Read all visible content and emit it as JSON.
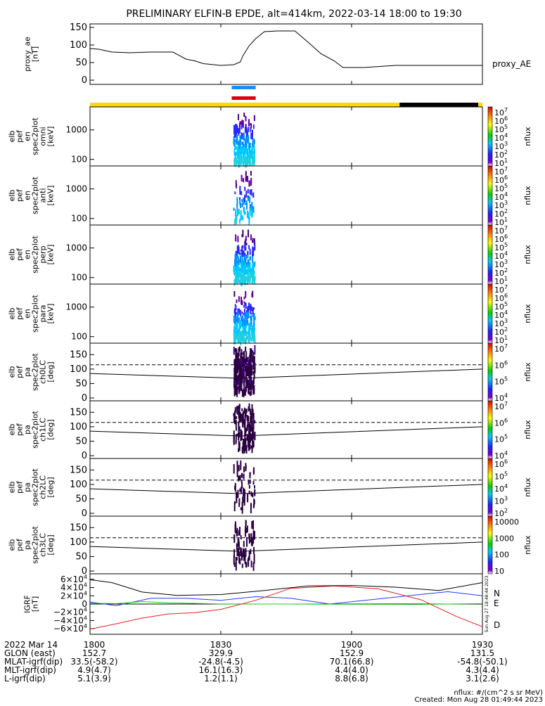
{
  "title": "PRELIMINARY ELFIN-B EPDE, alt=414km, 2022-03-14 18:00 to 19:30",
  "ae_panel": {
    "ylabel_lines": [
      "proxy_ae",
      "[nT]"
    ],
    "yticks": [
      "150",
      "100",
      "50",
      "0"
    ],
    "legend": "proxy_AE"
  },
  "spec_panels": [
    {
      "ylabel_lines": [
        "elb",
        "pef",
        "en",
        "spec2plot",
        "omni",
        "[keV]"
      ],
      "yticks": [
        "1000",
        "100"
      ],
      "cbar_ticks": [
        "10",
        "10",
        "10",
        "10",
        "10",
        "10",
        "10"
      ],
      "cbar_exps": [
        "7",
        "6",
        "5",
        "4",
        "3",
        "2",
        "1"
      ],
      "cbar_label": "nflux"
    },
    {
      "ylabel_lines": [
        "elb",
        "pef",
        "en",
        "spec2plot",
        "anti",
        "[keV]"
      ],
      "yticks": [
        "1000",
        "100"
      ],
      "cbar_ticks": [
        "10",
        "10",
        "10",
        "10",
        "10",
        "10",
        "10"
      ],
      "cbar_exps": [
        "7",
        "6",
        "5",
        "4",
        "3",
        "2",
        "1"
      ],
      "cbar_label": "nflux"
    },
    {
      "ylabel_lines": [
        "elb",
        "pef",
        "en",
        "spec2plot",
        "perp",
        "[keV]"
      ],
      "yticks": [
        "1000",
        "100"
      ],
      "cbar_ticks": [
        "10",
        "10",
        "10",
        "10",
        "10",
        "10",
        "10"
      ],
      "cbar_exps": [
        "7",
        "6",
        "5",
        "4",
        "3",
        "2",
        "1"
      ],
      "cbar_label": "nflux"
    },
    {
      "ylabel_lines": [
        "elb",
        "pef",
        "en",
        "spec2plot",
        "para",
        "[keV]"
      ],
      "yticks": [
        "1000",
        "100"
      ],
      "cbar_ticks": [
        "10",
        "10",
        "10",
        "10",
        "10",
        "10",
        "10"
      ],
      "cbar_exps": [
        "7",
        "6",
        "5",
        "4",
        "3",
        "2",
        "1"
      ],
      "cbar_label": "nflux"
    }
  ],
  "pa_panels": [
    {
      "ylabel_lines": [
        "elb",
        "pef",
        "pa",
        "spec2plot",
        "ch0LC",
        "[deg]"
      ],
      "yticks": [
        "150",
        "100",
        "50",
        "0"
      ],
      "cbar_ticks": [
        "10",
        "10",
        "10",
        "10"
      ],
      "cbar_exps": [
        "7",
        "6",
        "5",
        "4"
      ],
      "cbar_label": "nflux"
    },
    {
      "ylabel_lines": [
        "elb",
        "pef",
        "pa",
        "spec2plot",
        "ch1LC",
        "[deg]"
      ],
      "yticks": [
        "150",
        "100",
        "50",
        "0"
      ],
      "cbar_ticks": [
        "10",
        "10",
        "10",
        "10"
      ],
      "cbar_exps": [
        "7",
        "6",
        "5",
        "4"
      ],
      "cbar_label": "nflux"
    },
    {
      "ylabel_lines": [
        "elb",
        "pef",
        "pa",
        "spec2plot",
        "ch2LC",
        "[deg]"
      ],
      "yticks": [
        "150",
        "100",
        "50",
        "0"
      ],
      "cbar_ticks": [
        "10",
        "10",
        "10",
        "10",
        "10"
      ],
      "cbar_exps": [
        "6",
        "5",
        "4",
        "3",
        "2"
      ],
      "cbar_label": "nflux"
    },
    {
      "ylabel_lines": [
        "elb",
        "pef",
        "pa",
        "spec2plot",
        "ch3LC",
        "[deg]"
      ],
      "yticks": [
        "150",
        "100",
        "50",
        "0"
      ],
      "cbar_ticks": [
        "10000",
        "1000",
        "100",
        "10"
      ],
      "cbar_exps": [
        "",
        "",
        "",
        ""
      ],
      "cbar_label": "nflux"
    }
  ],
  "bfield_panel": {
    "ylabel_lines": [
      "IGRF",
      "[nT]"
    ],
    "yticks": [
      {
        "mant": "6×10",
        "exp": "4"
      },
      {
        "mant": "4×10",
        "exp": "4"
      },
      {
        "mant": "2×10",
        "exp": "4"
      },
      {
        "mant": "0",
        "exp": ""
      },
      {
        "mant": "−2×10",
        "exp": "4"
      },
      {
        "mant": "−4×10",
        "exp": "4"
      },
      {
        "mant": "−6×10",
        "exp": "4"
      }
    ],
    "legend": [
      "N",
      "E",
      "D"
    ],
    "colors": {
      "N": "#1e3cff",
      "E": "#22cc22",
      "D": "#e02020",
      "total": "#000000"
    },
    "side_note": "Sun Aug 27 18:48:44 2023"
  },
  "status_bar": {
    "colors": {
      "day": "#ffd800",
      "night": "#000000"
    }
  },
  "markers": {
    "colors": {
      "blue": "#1e8cff",
      "red": "#e00000"
    }
  },
  "footer": {
    "rows": [
      {
        "label": "2022 Mar 14",
        "values": [
          "1800",
          "1830",
          "1900",
          "1930"
        ]
      },
      {
        "label": "GLON (east)",
        "values": [
          "152.7",
          "329.9",
          "152.9",
          "131.5"
        ]
      },
      {
        "label": "MLAT-igrf(dip)",
        "values": [
          "33.5(-58.2)",
          "-24.8(-4.5)",
          "70.1(66.8)",
          "-54.8(-50.1)"
        ]
      },
      {
        "label": "MLT-igrf(dip)",
        "values": [
          "4.9(4.7)",
          "16.1(16.3)",
          "4.4(4.0)",
          "4.3(4.4)"
        ]
      },
      {
        "label": "L-igrf(dip)",
        "values": [
          "5.1(3.9)",
          "1.2(1.1)",
          "8.8(6.8)",
          "3.1(2.6)"
        ]
      }
    ],
    "units_note": "nflux: #/(cm^2 s sr MeV)",
    "created": "Created: Mon Aug 28 01:49:44 2023"
  },
  "chart_data": {
    "type": "line",
    "title": "PRELIMINARY ELFIN-B EPDE, alt=414km, 2022-03-14 18:00 to 19:30",
    "x_range_minutes": [
      0,
      90
    ],
    "x_ticks": [
      "1800",
      "1830",
      "1900",
      "1930"
    ],
    "proxy_ae": {
      "x": [
        0,
        2,
        5,
        9,
        14,
        19,
        22,
        24,
        26,
        30,
        33,
        34.5,
        35,
        36.5,
        38,
        40,
        43,
        47,
        50,
        53,
        56,
        58,
        60,
        63,
        70,
        75,
        80,
        85,
        90
      ],
      "y": [
        90,
        88,
        80,
        78,
        80,
        80,
        60,
        55,
        47,
        42,
        44,
        52,
        68,
        98,
        118,
        138,
        140,
        140,
        108,
        75,
        55,
        36,
        36,
        36,
        42,
        42,
        42,
        42,
        42
      ],
      "ylim": [
        0,
        160
      ]
    },
    "spectrogram_energy_range_keV": [
      60,
      6000
    ],
    "pitch_angle_range_deg": [
      0,
      180
    ],
    "burst_interval_minutes": [
      32.5,
      38
    ],
    "lc_dashed_deg": 115,
    "lc_solid_deg": {
      "x": [
        0,
        34.5,
        90
      ],
      "y": [
        85,
        68,
        100
      ]
    },
    "igrf": {
      "ylim": [
        -70000,
        70000
      ],
      "series": [
        {
          "name": "N",
          "x": [
            0,
            6,
            14,
            22,
            30,
            38,
            46,
            55,
            64,
            72,
            82,
            90
          ],
          "y": [
            5000,
            -4000,
            14000,
            14000,
            9000,
            18000,
            14000,
            0,
            10000,
            19000,
            30000,
            20000
          ]
        },
        {
          "name": "E",
          "x": [
            0,
            6,
            12,
            18,
            30,
            45,
            60,
            75,
            90
          ],
          "y": [
            2000,
            1000,
            6000,
            3000,
            200,
            0,
            -600,
            -1000,
            1000
          ]
        },
        {
          "name": "D",
          "x": [
            0,
            6,
            12,
            18,
            24,
            30,
            38,
            46,
            56,
            66,
            76,
            84,
            90
          ],
          "y": [
            -61000,
            -48000,
            -34000,
            -24000,
            -21000,
            -13000,
            9000,
            38000,
            44000,
            37000,
            10000,
            -30000,
            -55000
          ]
        },
        {
          "name": "total",
          "x": [
            0,
            5,
            12,
            20,
            30,
            40,
            50,
            60,
            70,
            80,
            90
          ],
          "y": [
            59000,
            52000,
            29000,
            21000,
            23000,
            33000,
            44000,
            45000,
            41000,
            33000,
            52000
          ]
        }
      ]
    }
  }
}
